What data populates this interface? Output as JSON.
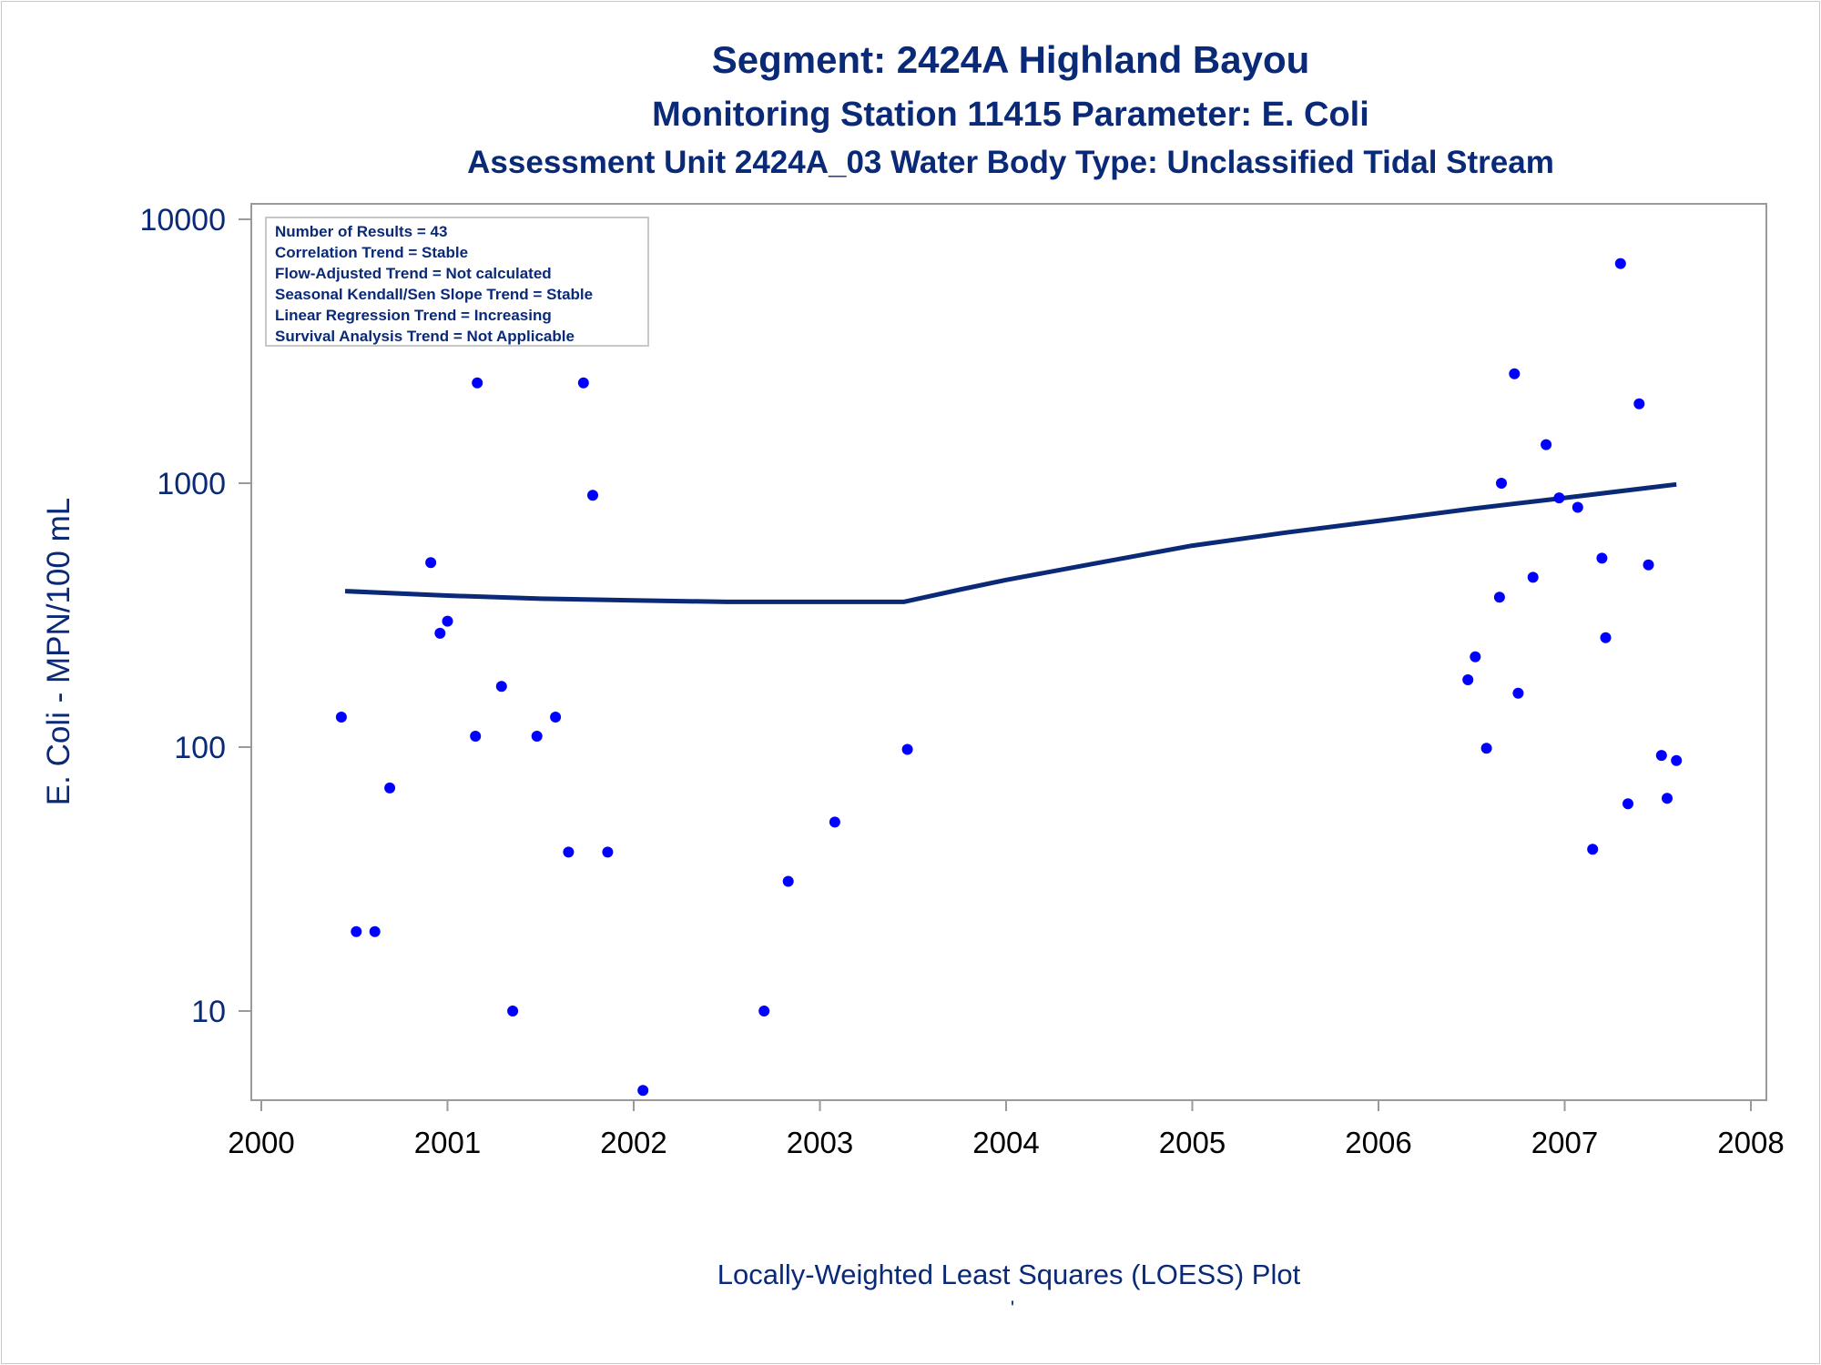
{
  "chart_data": {
    "type": "scatter",
    "title": "Segment: 2424A  Highland Bayou",
    "subtitle": "Monitoring Station 11415 Parameter: E. Coli",
    "subtitle2": "Assessment Unit 2424A_03   Water Body Type: Unclassified Tidal Stream",
    "xlabel": "Locally-Weighted Least Squares (LOESS) Plot",
    "ylabel": "E. Coli - MPN/100 mL",
    "footnote": "'",
    "xlim": [
      2000,
      2008
    ],
    "ylim": [
      5,
      10000
    ],
    "yscale": "log",
    "grid": false,
    "xticks": [
      "2000",
      "2001",
      "2002",
      "2003",
      "2004",
      "2005",
      "2006",
      "2007",
      "2008"
    ],
    "yticks": [
      "10",
      "100",
      "1000",
      "10000"
    ],
    "stats_box": {
      "placement": "top-left",
      "lines": [
        "Number of Results = 43",
        "Correlation Trend = Stable",
        "Flow-Adjusted Trend = Not calculated",
        "Seasonal Kendall/Sen Slope Trend = Stable",
        "Linear Regression Trend = Increasing",
        "Survival Analysis Trend = Not Applicable"
      ]
    },
    "colors": {
      "points": "#0000ff",
      "loess": "#0a2a78",
      "text": "#0a2a78",
      "frame": "#9a9a9a"
    },
    "series": [
      {
        "type": "scatter",
        "x": [
          2000.43,
          2000.51,
          2000.61,
          2000.69,
          2000.91,
          2000.96,
          2001.0,
          2001.15,
          2001.16,
          2001.35,
          2001.29,
          2001.48,
          2001.58,
          2001.65,
          2001.73,
          2001.78,
          2001.86,
          2002.05,
          2002.7,
          2002.83,
          2003.08,
          2003.47,
          2006.48,
          2006.52,
          2006.58,
          2006.65,
          2006.66,
          2006.73,
          2006.75,
          2006.83,
          2006.9,
          2006.97,
          2007.07,
          2007.15,
          2007.2,
          2007.22,
          2007.3,
          2007.34,
          2007.4,
          2007.45,
          2007.52,
          2007.55,
          2007.6
        ],
        "y": [
          130,
          20,
          20,
          70,
          500,
          270,
          300,
          110,
          2400,
          10,
          170,
          110,
          130,
          40,
          2400,
          900,
          40,
          5,
          10,
          31,
          52,
          98,
          180,
          220,
          99,
          370,
          1000,
          2600,
          160,
          440,
          1400,
          880,
          810,
          41,
          520,
          260,
          6800,
          61,
          2000,
          490,
          93,
          64,
          89
        ]
      },
      {
        "type": "line",
        "x": [
          2000.45,
          2001.0,
          2001.5,
          2002.0,
          2002.5,
          2003.0,
          2003.45,
          2003.75,
          2004.0,
          2004.5,
          2005.0,
          2005.5,
          2006.0,
          2006.5,
          2007.0,
          2007.6
        ],
        "y": [
          390,
          375,
          365,
          360,
          355,
          355,
          355,
          395,
          430,
          500,
          580,
          650,
          720,
          800,
          880,
          990
        ]
      }
    ]
  }
}
